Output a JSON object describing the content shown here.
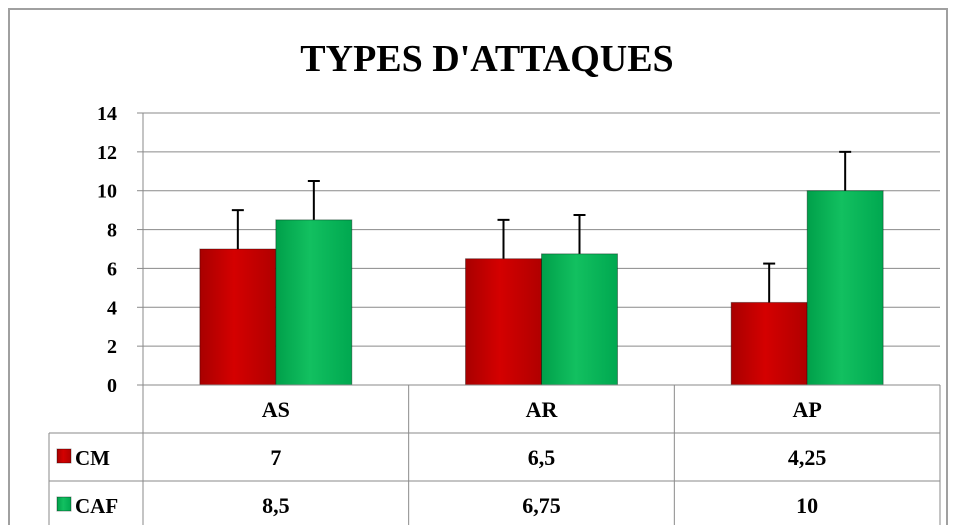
{
  "chart_data": {
    "type": "bar",
    "title": "TYPES D'ATTAQUES",
    "categories": [
      "AS",
      "AR",
      "AP"
    ],
    "series": [
      {
        "name": "CM",
        "values": [
          7,
          6.5,
          4.25
        ],
        "value_labels": [
          "7",
          "6,5",
          "4,25"
        ],
        "error": [
          2,
          2,
          2
        ],
        "color": "#cc0000"
      },
      {
        "name": "CAF",
        "values": [
          8.5,
          6.75,
          10
        ],
        "value_labels": [
          "8,5",
          "6,75",
          "10"
        ],
        "error": [
          2,
          2,
          2
        ],
        "color": "#00b050"
      }
    ],
    "ylim": [
      0,
      14
    ],
    "yticks": [
      "0",
      "2",
      "4",
      "6",
      "8",
      "10",
      "12",
      "14"
    ],
    "grid": true,
    "legend": "data-table",
    "xlabel": "",
    "ylabel": ""
  }
}
